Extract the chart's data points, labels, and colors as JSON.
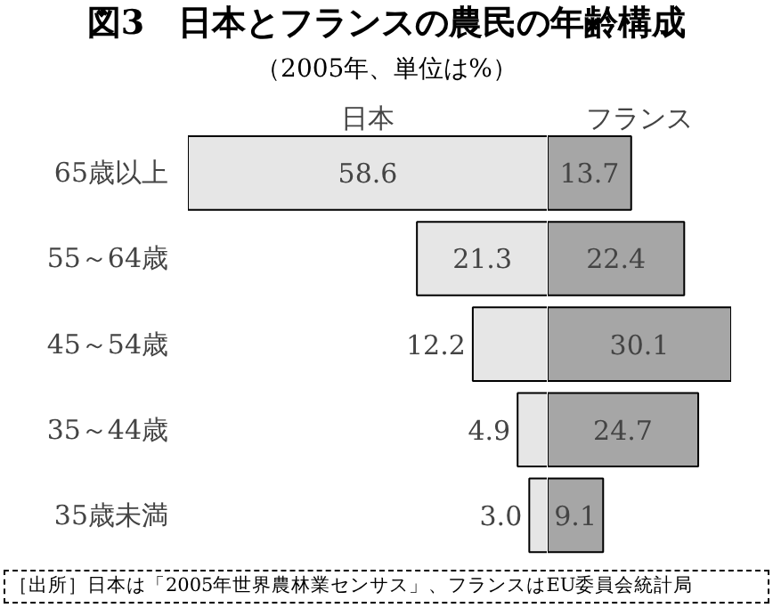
{
  "chart_data": [
    {
      "type": "bar",
      "orientation": "horizontal",
      "title": "図3　日本とフランスの農民の年齢構成",
      "subtitle": "（2005年、単位は%）",
      "categories": [
        "65歳以上",
        "55～64歳",
        "45～54歳",
        "35～44歳",
        "35歳未満"
      ],
      "series": [
        {
          "name": "日本",
          "color": "#e6e6e6",
          "values": [
            58.6,
            21.3,
            12.2,
            4.9,
            3.0
          ],
          "value_labels": [
            "58.6",
            "21.3",
            "12.2",
            "4.9",
            "3.0"
          ]
        }
      ],
      "xlim": [
        58.6,
        0
      ],
      "tick_labels": "y",
      "grid": false
    },
    {
      "type": "bar",
      "orientation": "horizontal",
      "categories": [
        null,
        null,
        null,
        null,
        null
      ],
      "series": [
        {
          "name": "フランス",
          "color": "#a6a6a6",
          "values": [
            13.7,
            22.4,
            30.1,
            24.7,
            9.1
          ],
          "value_labels": [
            "13.7",
            "22.4",
            "30.1",
            "24.7",
            "9.1"
          ]
        }
      ],
      "xlim": [
        0,
        30.1
      ],
      "tick_labels": false,
      "grid": false,
      "annotations": [
        "［出所］日本は「2005年世界農林業センサス」、フランスはEU委員会統計局"
      ]
    }
  ]
}
